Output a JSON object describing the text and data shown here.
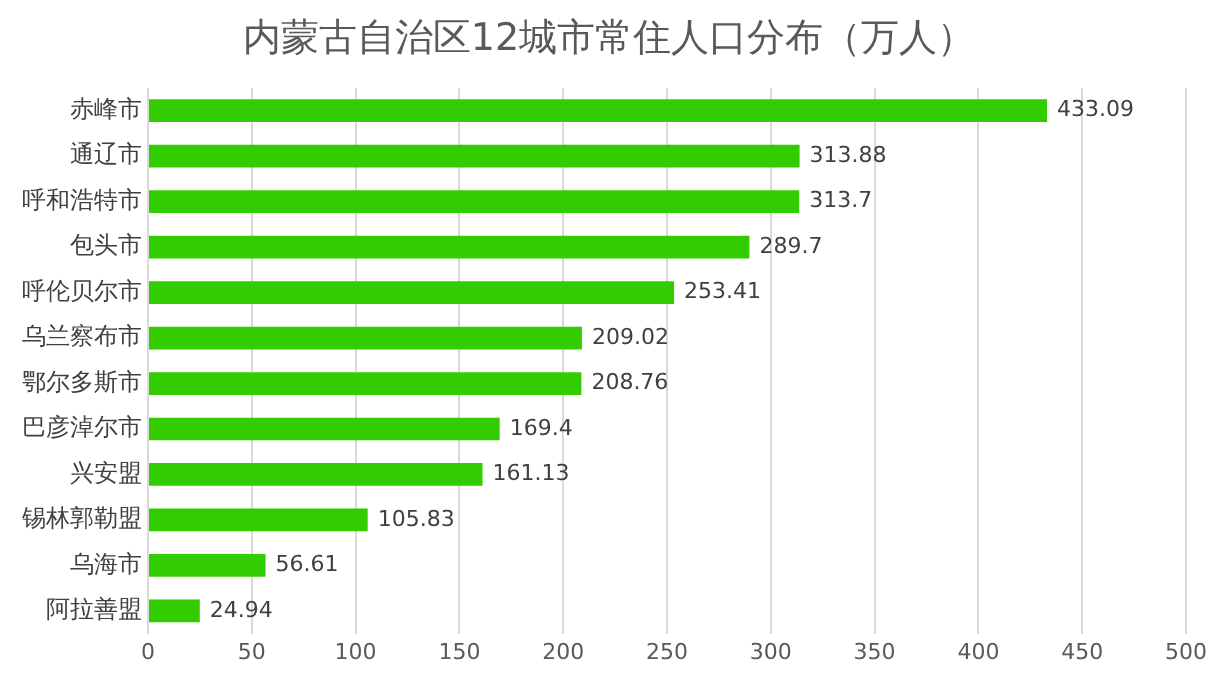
{
  "chart_data": {
    "type": "bar",
    "orientation": "horizontal",
    "title": "内蒙古自治区12城市常住人口分布（万人）",
    "categories": [
      "赤峰市",
      "通辽市",
      "呼和浩特市",
      "包头市",
      "呼伦贝尔市",
      "乌兰察布市",
      "鄂尔多斯市",
      "巴彦淖尔市",
      "兴安盟",
      "锡林郭勒盟",
      "乌海市",
      "阿拉善盟"
    ],
    "values": [
      433.09,
      313.88,
      313.7,
      289.7,
      253.41,
      209.02,
      208.76,
      169.4,
      161.13,
      105.83,
      56.61,
      24.94
    ],
    "color": "#33cc00",
    "xlim": [
      0,
      500
    ],
    "xticks": [
      0,
      50,
      100,
      150,
      200,
      250,
      300,
      350,
      400,
      450,
      500
    ],
    "grid": "x",
    "data_labels": true,
    "legend": false
  }
}
